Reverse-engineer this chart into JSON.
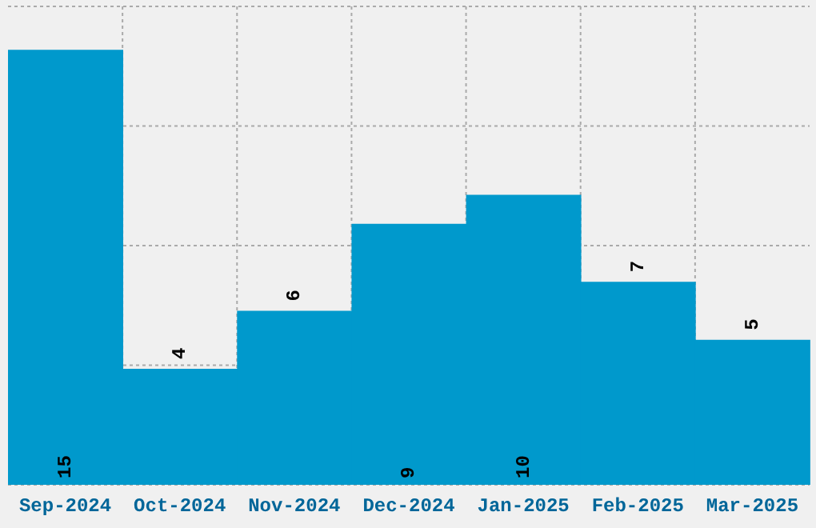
{
  "chart_data": {
    "type": "bar",
    "categories": [
      "Sep-2024",
      "Oct-2024",
      "Nov-2024",
      "Dec-2024",
      "Jan-2025",
      "Feb-2025",
      "Mar-2025"
    ],
    "values": [
      15,
      4,
      6,
      9,
      10,
      7,
      5
    ],
    "color": "#0099cc",
    "ylim": [
      0,
      16.5
    ],
    "yticks": [
      {
        "value": 0,
        "label": null
      },
      {
        "value": 4.125,
        "label": null
      },
      {
        "value": 8.25,
        "label": null
      },
      {
        "value": 12.375,
        "label": null
      },
      {
        "value": 16.5,
        "label": null
      }
    ],
    "tick_labels": "x",
    "grid": true,
    "data_labels": true
  }
}
